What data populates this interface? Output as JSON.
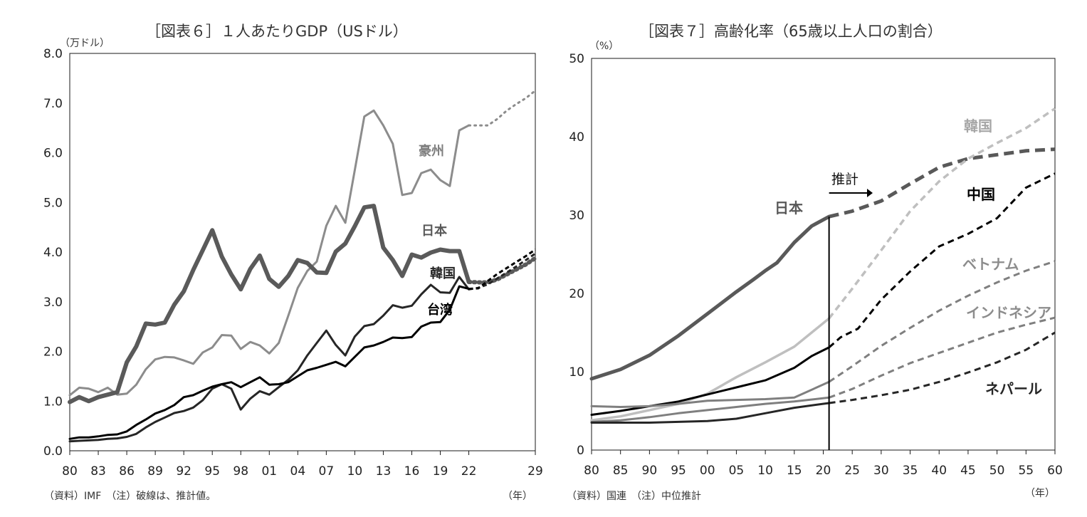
{
  "chart_data": [
    {
      "type": "line",
      "title": "［図表６］１人あたりGDP（USドル）",
      "unit_label": "（万ドル）",
      "xlabel": "（年）",
      "ylim": [
        0,
        8
      ],
      "yticks": [
        "0.0",
        "1.0",
        "2.0",
        "3.0",
        "4.0",
        "5.0",
        "6.0",
        "7.0",
        "8.0"
      ],
      "x_range": [
        1980,
        2029
      ],
      "xtick_years": [
        1980,
        1983,
        1986,
        1989,
        1992,
        1995,
        1998,
        2001,
        2004,
        2007,
        2010,
        2013,
        2016,
        2019,
        2022,
        2029
      ],
      "xtick_labels": [
        "80",
        "83",
        "86",
        "89",
        "92",
        "95",
        "98",
        "01",
        "04",
        "07",
        "10",
        "13",
        "16",
        "19",
        "22",
        "29"
      ],
      "projection_from": 2022,
      "note": "（資料）IMF　（注）破線は、推計値。",
      "series": [
        {
          "name": "豪州",
          "color": "#8c8c8c",
          "width": 3,
          "label_color": "#7f7f7f",
          "x": [
            1980,
            1981,
            1982,
            1983,
            1984,
            1985,
            1986,
            1987,
            1988,
            1989,
            1990,
            1991,
            1992,
            1993,
            1994,
            1995,
            1996,
            1997,
            1998,
            1999,
            2000,
            2001,
            2002,
            2003,
            2004,
            2005,
            2006,
            2007,
            2008,
            2009,
            2010,
            2011,
            2012,
            2013,
            2014,
            2015,
            2016,
            2017,
            2018,
            2019,
            2020,
            2021,
            2022,
            2023,
            2024,
            2025,
            2026,
            2027,
            2028,
            2029
          ],
          "values": [
            1.12,
            1.27,
            1.25,
            1.18,
            1.27,
            1.13,
            1.15,
            1.33,
            1.64,
            1.84,
            1.89,
            1.88,
            1.82,
            1.75,
            1.98,
            2.08,
            2.33,
            2.32,
            2.05,
            2.19,
            2.12,
            1.96,
            2.17,
            2.72,
            3.28,
            3.62,
            3.81,
            4.53,
            4.93,
            4.59,
            5.65,
            6.73,
            6.85,
            6.55,
            6.18,
            5.15,
            5.19,
            5.59,
            5.66,
            5.45,
            5.33,
            6.45,
            6.55,
            6.55,
            6.55,
            6.68,
            6.85,
            6.98,
            7.1,
            7.25
          ]
        },
        {
          "name": "日本",
          "color": "#5a5a5a",
          "width": 6,
          "label_color": "#595959",
          "x": [
            1980,
            1981,
            1982,
            1983,
            1984,
            1985,
            1986,
            1987,
            1988,
            1989,
            1990,
            1991,
            1992,
            1993,
            1994,
            1995,
            1996,
            1997,
            1998,
            1999,
            2000,
            2001,
            2002,
            2003,
            2004,
            2005,
            2006,
            2007,
            2008,
            2009,
            2010,
            2011,
            2012,
            2013,
            2014,
            2015,
            2016,
            2017,
            2018,
            2019,
            2020,
            2021,
            2022,
            2023,
            2024,
            2025,
            2026,
            2027,
            2028,
            2029
          ],
          "values": [
            0.98,
            1.08,
            1.0,
            1.08,
            1.13,
            1.18,
            1.78,
            2.1,
            2.56,
            2.54,
            2.58,
            2.94,
            3.21,
            3.64,
            4.04,
            4.44,
            3.91,
            3.55,
            3.25,
            3.66,
            3.93,
            3.46,
            3.3,
            3.52,
            3.84,
            3.78,
            3.59,
            3.58,
            4.01,
            4.17,
            4.52,
            4.9,
            4.93,
            4.09,
            3.84,
            3.52,
            3.95,
            3.89,
            3.99,
            4.05,
            4.02,
            4.02,
            3.4,
            3.39,
            3.39,
            3.45,
            3.55,
            3.65,
            3.75,
            3.88
          ]
        },
        {
          "name": "韓国",
          "color": "#262626",
          "width": 3,
          "label_color": "#262626",
          "x": [
            1980,
            1981,
            1982,
            1983,
            1984,
            1985,
            1986,
            1987,
            1988,
            1989,
            1990,
            1991,
            1992,
            1993,
            1994,
            1995,
            1996,
            1997,
            1998,
            1999,
            2000,
            2001,
            2002,
            2003,
            2004,
            2005,
            2006,
            2007,
            2008,
            2009,
            2010,
            2011,
            2012,
            2013,
            2014,
            2015,
            2016,
            2017,
            2018,
            2019,
            2020,
            2021,
            2022,
            2023,
            2024,
            2025,
            2026,
            2027,
            2028,
            2029
          ],
          "values": [
            0.19,
            0.2,
            0.21,
            0.22,
            0.24,
            0.25,
            0.28,
            0.34,
            0.47,
            0.58,
            0.67,
            0.76,
            0.8,
            0.87,
            1.02,
            1.25,
            1.34,
            1.25,
            0.83,
            1.05,
            1.2,
            1.13,
            1.28,
            1.43,
            1.62,
            1.92,
            2.17,
            2.42,
            2.13,
            1.92,
            2.3,
            2.51,
            2.55,
            2.72,
            2.93,
            2.88,
            2.92,
            3.15,
            3.34,
            3.19,
            3.18,
            3.5,
            3.25,
            3.28,
            3.35,
            3.47,
            3.59,
            3.71,
            3.84,
            3.97
          ]
        },
        {
          "name": "台湾",
          "color": "#000000",
          "width": 3,
          "label_color": "#000000",
          "x": [
            1980,
            1981,
            1982,
            1983,
            1984,
            1985,
            1986,
            1987,
            1988,
            1989,
            1990,
            1991,
            1992,
            1993,
            1994,
            1995,
            1996,
            1997,
            1998,
            1999,
            2000,
            2001,
            2002,
            2003,
            2004,
            2005,
            2006,
            2007,
            2008,
            2009,
            2010,
            2011,
            2012,
            2013,
            2014,
            2015,
            2016,
            2017,
            2018,
            2019,
            2020,
            2021,
            2022,
            2023,
            2024,
            2025,
            2026,
            2027,
            2028,
            2029
          ],
          "values": [
            0.24,
            0.27,
            0.27,
            0.29,
            0.32,
            0.33,
            0.39,
            0.52,
            0.63,
            0.75,
            0.82,
            0.92,
            1.08,
            1.12,
            1.21,
            1.29,
            1.34,
            1.38,
            1.28,
            1.38,
            1.48,
            1.33,
            1.34,
            1.38,
            1.5,
            1.62,
            1.67,
            1.73,
            1.79,
            1.7,
            1.89,
            2.08,
            2.12,
            2.19,
            2.28,
            2.27,
            2.29,
            2.5,
            2.58,
            2.59,
            2.84,
            3.31,
            3.26,
            3.27,
            3.42,
            3.56,
            3.68,
            3.8,
            3.92,
            4.05
          ]
        }
      ]
    },
    {
      "type": "line",
      "title": "［図表７］高齢化率（65歳以上人口の割合）",
      "unit_label": "（%）",
      "xlabel": "（年）",
      "ylim": [
        0,
        50
      ],
      "yticks": [
        "0",
        "10",
        "20",
        "30",
        "40",
        "50"
      ],
      "x_range": [
        1980,
        2060
      ],
      "xtick_labels": [
        "80",
        "85",
        "90",
        "95",
        "00",
        "05",
        "10",
        "15",
        "20",
        "25",
        "30",
        "35",
        "40",
        "45",
        "50",
        "55",
        "60"
      ],
      "projection_from": 2021,
      "projection_label": "推計",
      "note": "（資料）国連　（注）中位推計",
      "series": [
        {
          "name": "日本",
          "color": "#595959",
          "width": 5,
          "label_color": "#595959",
          "x": [
            1980,
            1985,
            1990,
            1995,
            2000,
            2005,
            2008,
            2010,
            2012,
            2015,
            2018,
            2021,
            2025,
            2030,
            2035,
            2040,
            2045,
            2050,
            2055,
            2060
          ],
          "values": [
            9.1,
            10.3,
            12.1,
            14.6,
            17.4,
            20.2,
            21.8,
            22.9,
            23.9,
            26.5,
            28.6,
            29.8,
            30.5,
            31.8,
            34.0,
            36.1,
            37.2,
            37.7,
            38.2,
            38.4
          ]
        },
        {
          "name": "韓国",
          "color": "#bfbfbf",
          "width": 3.5,
          "label_color": "#a6a6a6",
          "x": [
            1980,
            1985,
            1990,
            1995,
            2000,
            2005,
            2010,
            2015,
            2018,
            2021,
            2025,
            2030,
            2035,
            2040,
            2045,
            2050,
            2055,
            2060
          ],
          "values": [
            3.8,
            4.3,
            5.1,
            5.9,
            7.2,
            9.3,
            11.2,
            13.2,
            15.0,
            16.8,
            20.6,
            25.5,
            30.5,
            34.3,
            37.2,
            39.2,
            41.1,
            43.6
          ]
        },
        {
          "name": "中国",
          "color": "#000000",
          "width": 3,
          "label_color": "#000000",
          "x": [
            1980,
            1985,
            1990,
            1995,
            2000,
            2005,
            2010,
            2015,
            2018,
            2021,
            2023,
            2026,
            2030,
            2035,
            2040,
            2045,
            2050,
            2055,
            2060
          ],
          "values": [
            4.5,
            5.0,
            5.6,
            6.2,
            7.1,
            8.0,
            8.9,
            10.5,
            12.0,
            13.1,
            14.4,
            15.5,
            19.2,
            22.8,
            26.0,
            27.6,
            29.6,
            33.5,
            35.3
          ]
        },
        {
          "name": "ベトナム",
          "color": "#7f7f7f",
          "width": 3,
          "label_color": "#8c8c8c",
          "x": [
            1980,
            1985,
            1990,
            1995,
            2000,
            2005,
            2010,
            2015,
            2021,
            2025,
            2030,
            2035,
            2040,
            2045,
            2050,
            2055,
            2060
          ],
          "values": [
            5.6,
            5.5,
            5.6,
            5.9,
            6.3,
            6.4,
            6.5,
            6.7,
            8.7,
            10.7,
            13.3,
            15.6,
            17.8,
            19.7,
            21.4,
            22.9,
            24.1
          ]
        },
        {
          "name": "インドネシア",
          "color": "#7f7f7f",
          "width": 3,
          "label_color": "#8c8c8c",
          "x": [
            1980,
            1985,
            1990,
            1995,
            2000,
            2005,
            2010,
            2015,
            2021,
            2025,
            2030,
            2035,
            2040,
            2045,
            2050,
            2055,
            2060
          ],
          "values": [
            3.6,
            3.8,
            4.2,
            4.7,
            5.1,
            5.5,
            5.9,
            6.2,
            6.7,
            7.8,
            9.5,
            11.1,
            12.4,
            13.7,
            15.0,
            16.0,
            16.9
          ]
        },
        {
          "name": "ネパール",
          "color": "#262626",
          "width": 3,
          "label_color": "#262626",
          "x": [
            1980,
            1985,
            1990,
            1995,
            2000,
            2005,
            2010,
            2015,
            2021,
            2025,
            2030,
            2035,
            2040,
            2045,
            2050,
            2055,
            2060
          ],
          "values": [
            3.5,
            3.5,
            3.5,
            3.6,
            3.7,
            4.0,
            4.7,
            5.4,
            6.0,
            6.4,
            7.0,
            7.7,
            8.7,
            9.9,
            11.2,
            12.8,
            15.0
          ]
        }
      ]
    }
  ]
}
